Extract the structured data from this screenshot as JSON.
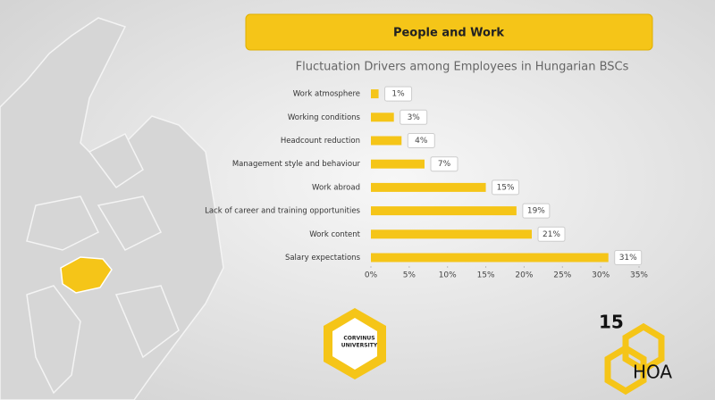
{
  "header": "People and Work",
  "logos": {
    "university": [
      "CORVINUS",
      "UNIVERSITY"
    ],
    "anniversary": "15",
    "association": "HOA"
  },
  "chart_data": {
    "type": "hbar",
    "title": "Fluctuation Drivers among Employees in Hungarian BSCs",
    "categories": [
      "Work atmosphere",
      "Working conditions",
      "Headcount reduction",
      "Management style and behaviour",
      "Work abroad",
      "Lack of career and training opportunities",
      "Work content",
      "Salary expectations"
    ],
    "values": [
      1,
      3,
      4,
      7,
      15,
      19,
      21,
      31
    ],
    "value_labels": [
      "1%",
      "3%",
      "4%",
      "7%",
      "15%",
      "19%",
      "21%",
      "31%"
    ],
    "color": "#f5c518",
    "xlim": [
      0,
      35
    ],
    "xticks": [
      {
        "value": 0,
        "label": "0%"
      },
      {
        "value": 5,
        "label": "5%"
      },
      {
        "value": 10,
        "label": "10%"
      },
      {
        "value": 15,
        "label": "15%"
      },
      {
        "value": 20,
        "label": "20%"
      },
      {
        "value": 25,
        "label": "25%"
      },
      {
        "value": 30,
        "label": "30%"
      },
      {
        "value": 35,
        "label": "35%"
      }
    ],
    "grid": false
  }
}
